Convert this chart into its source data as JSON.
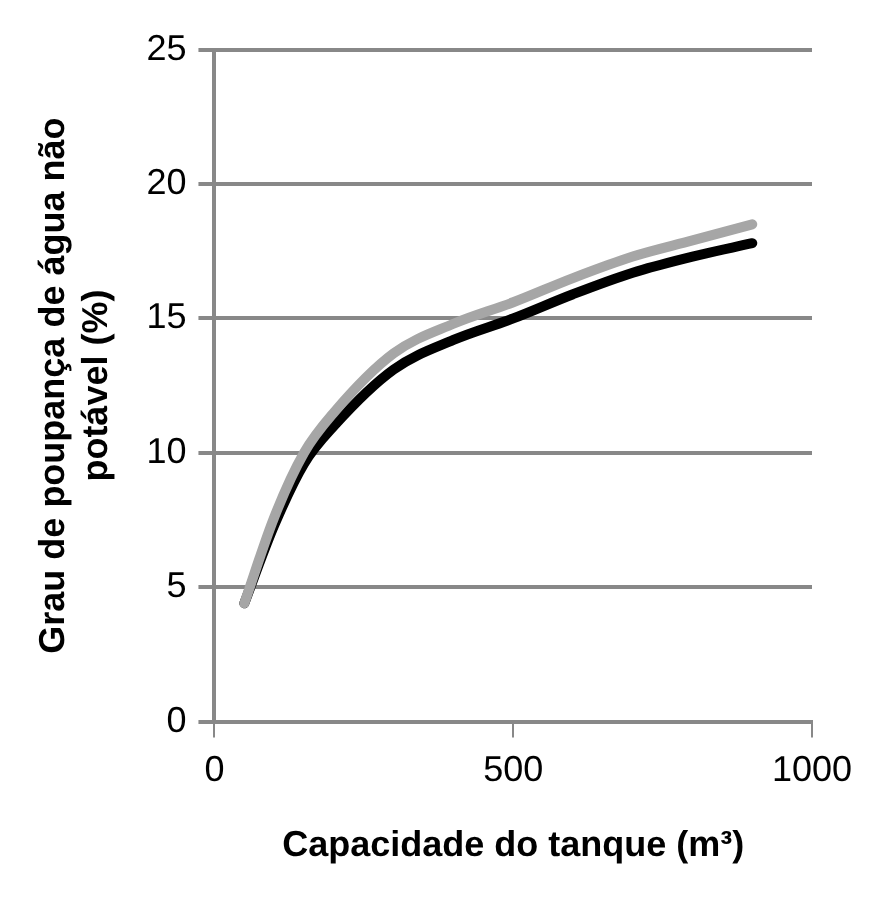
{
  "chart_data": {
    "type": "line",
    "xlabel": "Capacidade do tanque (m³)",
    "ylabel": "Grau de poupança de água não potável (%)",
    "x": [
      50,
      100,
      150,
      200,
      300,
      400,
      500,
      600,
      700,
      800,
      900
    ],
    "series": [
      {
        "color": "#a6a6a6",
        "values": [
          4.4,
          7.6,
          10.0,
          11.5,
          13.7,
          14.8,
          15.6,
          16.5,
          17.3,
          17.9,
          18.5
        ]
      },
      {
        "color": "#000000",
        "values": [
          4.4,
          7.3,
          9.6,
          11.0,
          13.1,
          14.2,
          15.0,
          15.9,
          16.7,
          17.3,
          17.8
        ]
      }
    ],
    "xlim": [
      0,
      1000
    ],
    "xticks": [
      0,
      500,
      1000
    ],
    "ylim": [
      0,
      25
    ],
    "yticks": [
      0,
      5,
      10,
      15,
      20,
      25
    ],
    "grid": "y",
    "legend": false,
    "marker": "none",
    "line_style": "solid"
  }
}
